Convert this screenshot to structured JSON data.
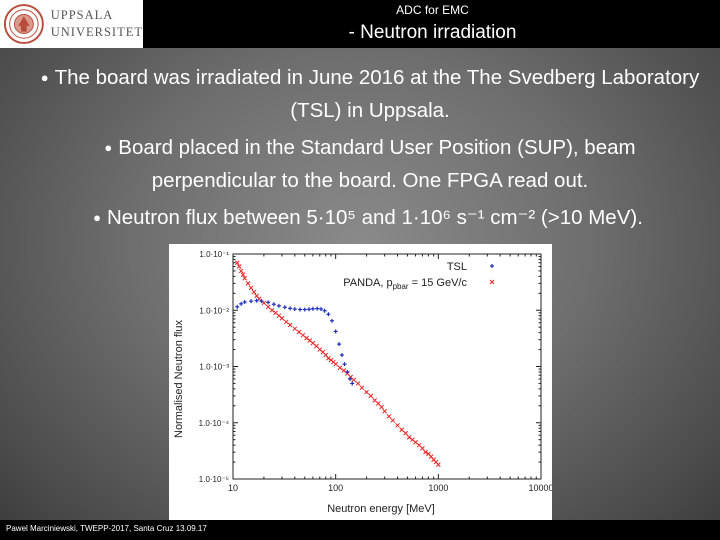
{
  "header": {
    "logo_line1": "UPPSALA",
    "logo_line2": "UNIVERSITET",
    "subtitle": "ADC for EMC",
    "title": "- Neutron irradiation"
  },
  "bullets": [
    "The board was irradiated in June 2016 at the The Svedberg Laboratory (TSL) in Uppsala.",
    "Board placed in the Standard User Position (SUP), beam perpendicular to the board. One FPGA read out.",
    "Neutron flux between 5·10⁵ and 1·10⁶ s⁻¹ cm⁻² (>10 MeV)."
  ],
  "footer": "Pawel Marciniewski, TWEPP-2017, Santa Cruz 13.09.17",
  "chart_data": {
    "type": "scatter",
    "xlabel": "Neutron energy [MeV]",
    "ylabel": "Normalised Neutron flux",
    "x_scale": "log",
    "y_scale": "log",
    "xlim": [
      10,
      10000
    ],
    "ylim": [
      1e-05,
      0.1
    ],
    "x_ticks": [
      10,
      100,
      1000,
      10000
    ],
    "x_tick_labels": [
      "10",
      "100",
      "1000",
      "10000"
    ],
    "y_ticks": [
      0.1,
      0.01,
      0.001,
      0.0001,
      1e-05
    ],
    "y_tick_labels": [
      "1.0·10⁻¹",
      "1.0·10⁻²",
      "1.0·10⁻³",
      "1.0·10⁻⁴",
      "1.0·10⁻⁵"
    ],
    "annotation": "PANDA, p",
    "annotation_sub": "pbar",
    "annotation_rest": " = 15 GeV/c",
    "legend_position": "top-right",
    "colors": {
      "tsl": "#1f2fb8",
      "panda": "#ee2222"
    },
    "series": [
      {
        "name": "TSL",
        "x": [
          11,
          12,
          13,
          15,
          17,
          19,
          22,
          25,
          28,
          32,
          36,
          40,
          45,
          50,
          55,
          60,
          66,
          72,
          78,
          85,
          92,
          100,
          108,
          115,
          122,
          130,
          138,
          145
        ],
        "y": [
          0.0115,
          0.013,
          0.014,
          0.0145,
          0.0148,
          0.0145,
          0.0138,
          0.0128,
          0.012,
          0.0113,
          0.0108,
          0.0105,
          0.0103,
          0.0103,
          0.0104,
          0.0106,
          0.0107,
          0.0105,
          0.0098,
          0.0085,
          0.0065,
          0.0042,
          0.0025,
          0.0016,
          0.0011,
          0.0008,
          0.0006,
          0.0005
        ]
      },
      {
        "name": "PANDA, pbar = 15 GeV/c",
        "x": [
          11,
          11.5,
          12,
          12.5,
          13,
          14,
          15,
          16,
          17,
          18,
          20,
          22,
          24,
          26,
          28,
          30,
          33,
          36,
          40,
          44,
          48,
          52,
          56,
          60,
          65,
          70,
          75,
          80,
          85,
          90,
          95,
          100,
          110,
          120,
          130,
          140,
          150,
          165,
          180,
          200,
          220,
          240,
          260,
          280,
          300,
          330,
          360,
          400,
          440,
          480,
          520,
          560,
          600,
          650,
          700,
          750,
          800,
          850,
          900,
          950,
          1000
        ],
        "y": [
          0.07,
          0.06,
          0.05,
          0.043,
          0.037,
          0.03,
          0.025,
          0.021,
          0.018,
          0.016,
          0.0135,
          0.0115,
          0.01,
          0.009,
          0.008,
          0.0072,
          0.0062,
          0.0055,
          0.0047,
          0.0041,
          0.0036,
          0.0032,
          0.0029,
          0.0026,
          0.0023,
          0.002,
          0.0018,
          0.0016,
          0.0014,
          0.0013,
          0.0012,
          0.0011,
          0.00095,
          0.00085,
          0.00075,
          0.00065,
          0.00058,
          0.0005,
          0.00042,
          0.00035,
          0.0003,
          0.00025,
          0.00022,
          0.00019,
          0.00016,
          0.00013,
          0.00011,
          9e-05,
          7.5e-05,
          6.5e-05,
          5.5e-05,
          5e-05,
          4.5e-05,
          4e-05,
          3.5e-05,
          3e-05,
          2.8e-05,
          2.5e-05,
          2.2e-05,
          2e-05,
          1.8e-05
        ]
      }
    ]
  }
}
